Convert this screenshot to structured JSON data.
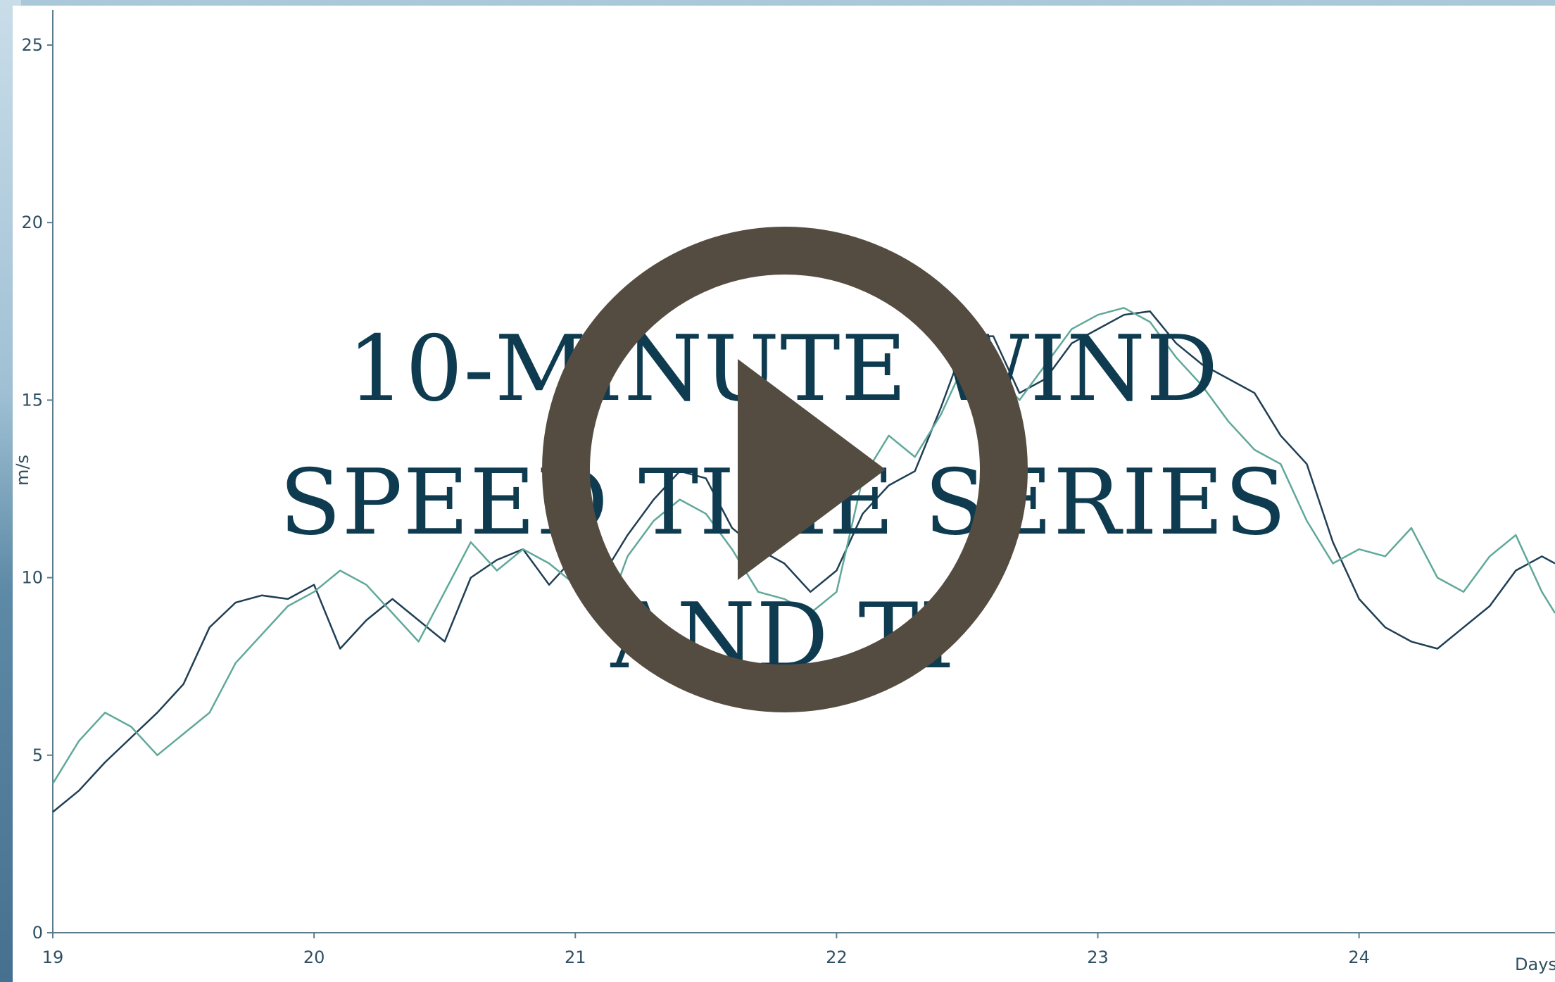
{
  "video": {
    "title_lines": [
      "10-MINUTE WIND",
      "SPEED TIME SERIES",
      "AND TI"
    ],
    "play_icon": "play-circle-icon",
    "play_color": "#544c40"
  },
  "chart_data": {
    "type": "line",
    "xlabel": "Days",
    "ylabel": "m/s",
    "xlim": [
      19,
      24.75
    ],
    "ylim": [
      0,
      25
    ],
    "xticks": [
      "19",
      "20",
      "21",
      "22",
      "23",
      "24"
    ],
    "yticks": [
      "0",
      "5",
      "10",
      "15",
      "20",
      "25"
    ],
    "grid": false,
    "series": [
      {
        "color": "#1f3f55",
        "x": [
          19.0,
          19.1,
          19.2,
          19.3,
          19.4,
          19.5,
          19.6,
          19.7,
          19.8,
          19.9,
          20.0,
          20.1,
          20.2,
          20.3,
          20.4,
          20.5,
          20.6,
          20.7,
          20.8,
          20.9,
          21.0,
          21.1,
          21.2,
          21.3,
          21.4,
          21.5,
          21.6,
          21.7,
          21.8,
          21.9,
          22.0,
          22.1,
          22.2,
          22.3,
          22.4,
          22.5,
          22.6,
          22.7,
          22.8,
          22.9,
          23.0,
          23.1,
          23.2,
          23.3,
          23.4,
          23.5,
          23.6,
          23.7,
          23.8,
          23.9,
          24.0,
          24.1,
          24.2,
          24.3,
          24.4,
          24.5,
          24.6,
          24.7,
          24.75
        ],
        "y": [
          3.4,
          4.0,
          4.8,
          5.5,
          6.2,
          7.0,
          8.6,
          9.3,
          9.5,
          9.4,
          9.8,
          8.0,
          8.8,
          9.4,
          8.8,
          8.2,
          10.0,
          10.5,
          10.8,
          9.8,
          10.6,
          10.0,
          11.2,
          12.2,
          13.0,
          12.8,
          11.4,
          10.8,
          10.4,
          9.6,
          10.2,
          11.8,
          12.6,
          13.0,
          14.8,
          16.8,
          16.8,
          15.2,
          15.6,
          16.6,
          17.0,
          17.4,
          17.5,
          16.6,
          16.0,
          15.6,
          15.2,
          14.0,
          13.2,
          11.0,
          9.4,
          8.6,
          8.2,
          8.0,
          8.6,
          9.2,
          10.2,
          10.6,
          10.4
        ]
      },
      {
        "color": "#5fa89a",
        "x": [
          19.0,
          19.1,
          19.2,
          19.3,
          19.4,
          19.5,
          19.6,
          19.7,
          19.8,
          19.9,
          20.0,
          20.1,
          20.2,
          20.3,
          20.4,
          20.5,
          20.6,
          20.7,
          20.8,
          20.9,
          21.0,
          21.1,
          21.2,
          21.3,
          21.4,
          21.5,
          21.6,
          21.7,
          21.8,
          21.9,
          22.0,
          22.1,
          22.2,
          22.3,
          22.4,
          22.5,
          22.6,
          22.7,
          22.8,
          22.9,
          23.0,
          23.1,
          23.2,
          23.3,
          23.4,
          23.5,
          23.6,
          23.7,
          23.8,
          23.9,
          24.0,
          24.1,
          24.2,
          24.3,
          24.4,
          24.5,
          24.6,
          24.7,
          24.75
        ],
        "y": [
          4.2,
          5.4,
          6.2,
          5.8,
          5.0,
          5.6,
          6.2,
          7.6,
          8.4,
          9.2,
          9.6,
          10.2,
          9.8,
          9.0,
          8.2,
          9.6,
          11.0,
          10.2,
          10.8,
          10.4,
          9.8,
          8.6,
          10.6,
          11.6,
          12.2,
          11.8,
          10.8,
          9.6,
          9.4,
          9.0,
          9.6,
          12.8,
          14.0,
          13.4,
          14.6,
          16.2,
          15.8,
          15.0,
          16.0,
          17.0,
          17.4,
          17.6,
          17.2,
          16.2,
          15.4,
          14.4,
          13.6,
          13.2,
          11.6,
          10.4,
          10.8,
          10.6,
          11.4,
          10.0,
          9.6,
          10.6,
          11.2,
          9.6,
          9.0
        ]
      }
    ]
  }
}
